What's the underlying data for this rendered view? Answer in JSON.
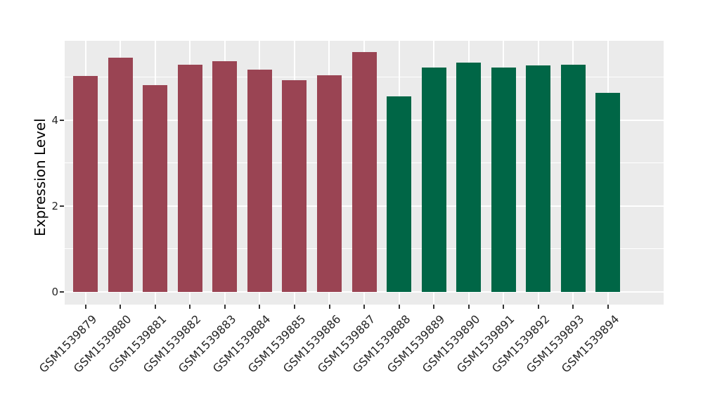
{
  "chart_data": {
    "type": "bar",
    "title": "",
    "xlabel": "",
    "ylabel": "Expression Level",
    "categories": [
      "GSM1539879",
      "GSM1539880",
      "GSM1539881",
      "GSM1539882",
      "GSM1539883",
      "GSM1539884",
      "GSM1539885",
      "GSM1539886",
      "GSM1539887",
      "GSM1539888",
      "GSM1539889",
      "GSM1539890",
      "GSM1539891",
      "GSM1539892",
      "GSM1539893",
      "GSM1539894"
    ],
    "values": [
      5.03,
      5.46,
      4.82,
      5.3,
      5.38,
      5.18,
      4.93,
      5.05,
      5.59,
      4.56,
      5.23,
      5.35,
      5.22,
      5.27,
      5.29,
      4.63
    ],
    "bar_colors": [
      "#9A4453",
      "#9A4453",
      "#9A4453",
      "#9A4453",
      "#9A4453",
      "#9A4453",
      "#9A4453",
      "#9A4453",
      "#9A4453",
      "#006646",
      "#006646",
      "#006646",
      "#006646",
      "#006646",
      "#006646",
      "#006646"
    ],
    "yticks": [
      0,
      2,
      4
    ],
    "yticks_minor": [
      1,
      3,
      5
    ],
    "ylim": [
      -0.3,
      5.85
    ],
    "x_tick_rotation_deg": 45,
    "legend": "none",
    "grid": "major and minor white gridlines on gray panel",
    "panel_background": "#EBEBEB",
    "grid_color": "#FFFFFF",
    "figure_background": "#FFFFFF",
    "axis_text_color": "#262626",
    "axis_title_color": "#000000"
  }
}
